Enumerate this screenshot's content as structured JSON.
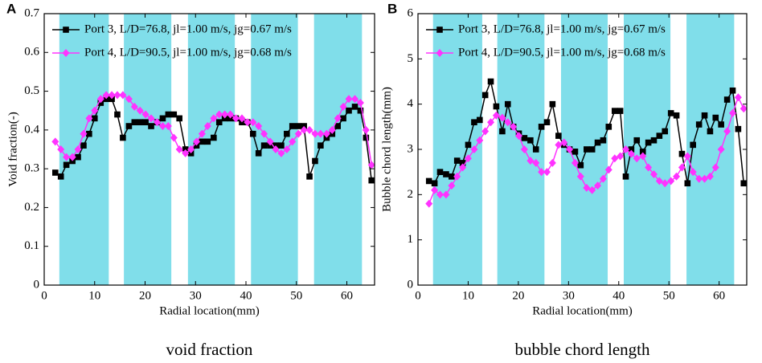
{
  "chart_data": [
    {
      "type": "line",
      "panel_label": "A",
      "xlabel": "Radial location(mm)",
      "ylabel": "Void fraction(-)",
      "caption": "void fraction",
      "xlim": [
        0,
        65.5
      ],
      "xticks": [
        0,
        10,
        20,
        30,
        40,
        50,
        60
      ],
      "ylim": [
        0,
        0.7
      ],
      "yticks": [
        {
          "value": 0,
          "label": "0"
        },
        0.1,
        0.2,
        0.3,
        0.4,
        0.5,
        0.6,
        0.7
      ],
      "bands": [
        [
          3,
          12.8
        ],
        [
          15.8,
          25.2
        ],
        [
          28.5,
          37.8
        ],
        [
          41,
          50.3
        ],
        [
          53.5,
          63
        ]
      ],
      "band_color": "#80deea",
      "legend": "upper left",
      "x": [
        2.2,
        3.3,
        4.4,
        5.6,
        6.7,
        7.8,
        8.9,
        10.0,
        11.2,
        12.3,
        13.4,
        14.5,
        15.6,
        16.8,
        17.9,
        19.0,
        20.1,
        21.2,
        22.4,
        23.5,
        24.6,
        25.7,
        26.8,
        28.0,
        29.1,
        30.2,
        31.3,
        32.4,
        33.6,
        34.7,
        35.8,
        36.9,
        38.0,
        39.2,
        40.3,
        41.4,
        42.5,
        43.6,
        44.8,
        45.9,
        47.0,
        48.1,
        49.2,
        50.4,
        51.5,
        52.6,
        53.7,
        54.8,
        56.0,
        57.1,
        58.2,
        59.3,
        60.4,
        61.6,
        62.7,
        63.8,
        64.9
      ],
      "series": [
        {
          "name": "Port 3, L/D=76.8, jl=1.00 m/s, jg=0.67 m/s",
          "color": "#000000",
          "marker": "square",
          "values": [
            0.29,
            0.28,
            0.31,
            0.32,
            0.33,
            0.36,
            0.39,
            0.43,
            0.47,
            0.48,
            0.48,
            0.44,
            0.38,
            0.41,
            0.42,
            0.42,
            0.42,
            0.41,
            0.42,
            0.43,
            0.44,
            0.44,
            0.43,
            0.35,
            0.34,
            0.36,
            0.37,
            0.37,
            0.38,
            0.42,
            0.43,
            0.43,
            0.43,
            0.42,
            0.42,
            0.39,
            0.34,
            0.36,
            0.36,
            0.36,
            0.36,
            0.39,
            0.41,
            0.41,
            0.41,
            0.28,
            0.32,
            0.36,
            0.38,
            0.39,
            0.41,
            0.43,
            0.45,
            0.46,
            0.45,
            0.38,
            0.27
          ]
        },
        {
          "name": "Port 4, L/D=90.5, jl=1.00 m/s, jg=0.68 m/s",
          "color": "#ff33ff",
          "marker": "diamond",
          "values": [
            0.37,
            0.35,
            0.33,
            0.33,
            0.35,
            0.39,
            0.43,
            0.45,
            0.48,
            0.49,
            0.49,
            0.49,
            0.49,
            0.48,
            0.46,
            0.45,
            0.44,
            0.43,
            0.42,
            0.41,
            0.41,
            0.38,
            0.35,
            0.34,
            0.35,
            0.37,
            0.39,
            0.41,
            0.43,
            0.44,
            0.44,
            0.44,
            0.43,
            0.43,
            0.42,
            0.42,
            0.41,
            0.39,
            0.37,
            0.35,
            0.34,
            0.35,
            0.37,
            0.39,
            0.4,
            0.4,
            0.39,
            0.39,
            0.39,
            0.4,
            0.43,
            0.46,
            0.48,
            0.48,
            0.47,
            0.4,
            0.31
          ]
        }
      ]
    },
    {
      "type": "line",
      "panel_label": "B",
      "xlabel": "Radial location(mm)",
      "ylabel": "Bubble chord length(mm)",
      "caption": "bubble chord length",
      "xlim": [
        0,
        65.5
      ],
      "xticks": [
        0,
        10,
        20,
        30,
        40,
        50,
        60
      ],
      "ylim": [
        0,
        6
      ],
      "yticks": [
        0,
        1,
        2,
        3,
        4,
        5,
        6
      ],
      "bands": [
        [
          3,
          12.8
        ],
        [
          15.8,
          25.2
        ],
        [
          28.5,
          37.8
        ],
        [
          41,
          50.3
        ],
        [
          53.5,
          63
        ]
      ],
      "band_color": "#80deea",
      "legend": "upper left",
      "x": [
        2.2,
        3.3,
        4.4,
        5.6,
        6.7,
        7.8,
        8.9,
        10.0,
        11.2,
        12.3,
        13.4,
        14.5,
        15.6,
        16.8,
        17.9,
        19.0,
        20.1,
        21.2,
        22.4,
        23.5,
        24.6,
        25.7,
        26.8,
        28.0,
        29.1,
        30.2,
        31.3,
        32.4,
        33.6,
        34.7,
        35.8,
        36.9,
        38.0,
        39.2,
        40.3,
        41.4,
        42.5,
        43.6,
        44.8,
        45.9,
        47.0,
        48.1,
        49.2,
        50.4,
        51.5,
        52.6,
        53.7,
        54.8,
        56.0,
        57.1,
        58.2,
        59.3,
        60.4,
        61.6,
        62.7,
        63.8,
        64.9
      ],
      "series": [
        {
          "name": "Port 3, L/D=76.8, jl=1.00 m/s, jg=0.67 m/s",
          "color": "#000000",
          "marker": "square",
          "values": [
            2.3,
            2.25,
            2.5,
            2.45,
            2.4,
            2.75,
            2.7,
            3.1,
            3.6,
            3.65,
            4.2,
            4.5,
            3.95,
            3.4,
            4.0,
            3.5,
            3.35,
            3.25,
            3.2,
            3.0,
            3.5,
            3.6,
            4.0,
            3.3,
            3.1,
            3.0,
            2.95,
            2.65,
            3.0,
            3.0,
            3.15,
            3.2,
            3.5,
            3.85,
            3.85,
            2.4,
            3.0,
            3.2,
            2.95,
            3.15,
            3.2,
            3.3,
            3.4,
            3.8,
            3.75,
            2.9,
            2.25,
            3.1,
            3.55,
            3.75,
            3.4,
            3.7,
            3.55,
            4.1,
            4.3,
            3.45,
            2.25
          ]
        },
        {
          "name": "Port 4, L/D=90.5, jl=1.00 m/s, jg=0.68 m/s",
          "color": "#ff33ff",
          "marker": "diamond",
          "values": [
            1.8,
            2.1,
            2.0,
            2.0,
            2.2,
            2.4,
            2.6,
            2.8,
            3.0,
            3.2,
            3.4,
            3.6,
            3.75,
            3.7,
            3.6,
            3.5,
            3.3,
            3.0,
            2.75,
            2.7,
            2.5,
            2.5,
            2.7,
            3.1,
            3.15,
            3.0,
            2.7,
            2.4,
            2.15,
            2.1,
            2.2,
            2.35,
            2.55,
            2.8,
            2.85,
            3.0,
            2.9,
            2.8,
            2.85,
            2.6,
            2.45,
            2.3,
            2.25,
            2.3,
            2.4,
            2.6,
            2.85,
            2.5,
            2.35,
            2.35,
            2.4,
            2.6,
            3.0,
            3.4,
            3.8,
            4.15,
            3.9
          ]
        }
      ]
    }
  ]
}
